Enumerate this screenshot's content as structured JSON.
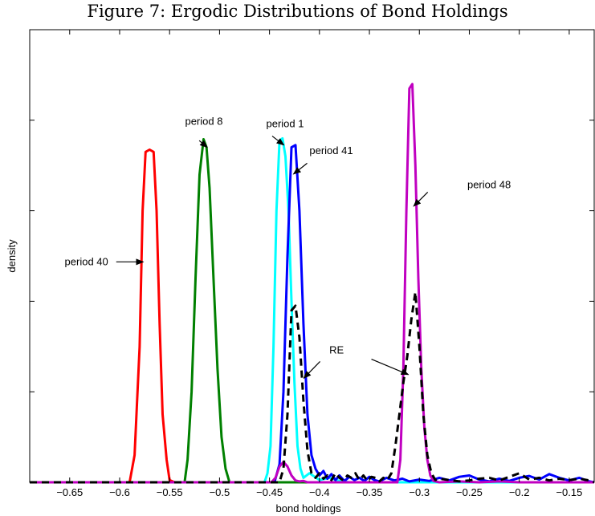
{
  "chart_data": {
    "type": "line",
    "title": "Figure 7: Ergodic Distributions of Bond Holdings",
    "xlabel": "bond holdings",
    "ylabel": "density",
    "xlim": [
      -0.69,
      -0.125
    ],
    "ylim": [
      0,
      1.0
    ],
    "x_ticks": [
      -0.65,
      -0.6,
      -0.55,
      -0.5,
      -0.45,
      -0.4,
      -0.35,
      -0.3,
      -0.25,
      -0.2,
      -0.15
    ],
    "x_tick_labels": [
      "−0.65",
      "−0.6",
      "−0.55",
      "−0.5",
      "−0.45",
      "−0.4",
      "−0.35",
      "−0.3",
      "−0.25",
      "−0.2",
      "−0.15"
    ],
    "y_ticks": [
      0.2,
      0.4,
      0.6,
      0.8
    ],
    "grid": false,
    "series": [
      {
        "name": "period 40",
        "color": "#ff0000",
        "dashed": false,
        "x": [
          -0.69,
          -0.59,
          -0.585,
          -0.58,
          -0.577,
          -0.574,
          -0.57,
          -0.566,
          -0.563,
          -0.56,
          -0.557,
          -0.553,
          -0.55,
          -0.545,
          -0.54,
          -0.125
        ],
        "y": [
          0,
          0,
          0.06,
          0.3,
          0.6,
          0.73,
          0.735,
          0.73,
          0.6,
          0.35,
          0.15,
          0.05,
          0.005,
          0,
          0,
          0
        ]
      },
      {
        "name": "period 8",
        "color": "#008000",
        "dashed": false,
        "x": [
          -0.69,
          -0.535,
          -0.532,
          -0.528,
          -0.524,
          -0.52,
          -0.516,
          -0.513,
          -0.51,
          -0.506,
          -0.502,
          -0.498,
          -0.494,
          -0.49,
          -0.125
        ],
        "y": [
          0,
          0,
          0.05,
          0.2,
          0.45,
          0.68,
          0.758,
          0.74,
          0.65,
          0.45,
          0.25,
          0.1,
          0.03,
          0,
          0
        ]
      },
      {
        "name": "period 1",
        "color": "#00ffff",
        "dashed": false,
        "x": [
          -0.69,
          -0.455,
          -0.452,
          -0.449,
          -0.446,
          -0.443,
          -0.44,
          -0.437,
          -0.434,
          -0.431,
          -0.428,
          -0.425,
          -0.422,
          -0.419,
          -0.416,
          -0.41,
          -0.4,
          -0.39,
          -0.38,
          -0.37,
          -0.125
        ],
        "y": [
          0,
          0,
          0.02,
          0.08,
          0.3,
          0.6,
          0.755,
          0.76,
          0.72,
          0.6,
          0.4,
          0.22,
          0.08,
          0.03,
          0.01,
          0.02,
          0.005,
          0.01,
          0.003,
          0,
          0
        ]
      },
      {
        "name": "period 41",
        "color": "#0000ff",
        "dashed": false,
        "x": [
          -0.69,
          -0.445,
          -0.44,
          -0.436,
          -0.432,
          -0.428,
          -0.424,
          -0.42,
          -0.416,
          -0.412,
          -0.408,
          -0.404,
          -0.4,
          -0.396,
          -0.392,
          -0.388,
          -0.384,
          -0.38,
          -0.375,
          -0.37,
          -0.365,
          -0.36,
          -0.355,
          -0.35,
          -0.345,
          -0.34,
          -0.333,
          -0.325,
          -0.317,
          -0.31,
          -0.3,
          -0.29,
          -0.28,
          -0.27,
          -0.26,
          -0.25,
          -0.24,
          -0.23,
          -0.22,
          -0.21,
          -0.2,
          -0.19,
          -0.18,
          -0.17,
          -0.16,
          -0.15,
          -0.14,
          -0.13,
          -0.125
        ],
        "y": [
          0,
          0,
          0.04,
          0.2,
          0.5,
          0.74,
          0.745,
          0.6,
          0.35,
          0.15,
          0.06,
          0.03,
          0.015,
          0.025,
          0.008,
          0.018,
          0.005,
          0.015,
          0.003,
          0.012,
          0.005,
          0.01,
          0.003,
          0.012,
          0.005,
          0.002,
          0.01,
          0.004,
          0.008,
          0.002,
          0.006,
          0.003,
          0.01,
          0.004,
          0.012,
          0.015,
          0.006,
          0.002,
          0.008,
          0.003,
          0.01,
          0.014,
          0.006,
          0.018,
          0.01,
          0.004,
          0.01,
          0.002,
          0
        ]
      },
      {
        "name": "period 48",
        "color": "#c000c0",
        "dashed": false,
        "x": [
          -0.69,
          -0.448,
          -0.444,
          -0.44,
          -0.436,
          -0.432,
          -0.428,
          -0.424,
          -0.42,
          -0.416,
          -0.412,
          -0.405,
          -0.322,
          -0.319,
          -0.316,
          -0.313,
          -0.31,
          -0.307,
          -0.304,
          -0.301,
          -0.298,
          -0.295,
          -0.292,
          -0.289,
          -0.286,
          -0.28,
          -0.26,
          -0.24,
          -0.22,
          -0.2,
          -0.125
        ],
        "y": [
          0,
          0,
          0.01,
          0.035,
          0.045,
          0.035,
          0.015,
          0.004,
          0.002,
          0.003,
          0.0,
          0,
          0,
          0.05,
          0.25,
          0.6,
          0.87,
          0.88,
          0.7,
          0.45,
          0.25,
          0.12,
          0.05,
          0.015,
          0.003,
          0,
          0.002,
          0,
          0.002,
          0,
          0
        ]
      },
      {
        "name": "RE",
        "color": "#000000",
        "dashed": true,
        "x": [
          -0.69,
          -0.44,
          -0.436,
          -0.432,
          -0.428,
          -0.424,
          -0.42,
          -0.416,
          -0.412,
          -0.408,
          -0.404,
          -0.4,
          -0.396,
          -0.392,
          -0.388,
          -0.384,
          -0.38,
          -0.376,
          -0.372,
          -0.368,
          -0.364,
          -0.36,
          -0.356,
          -0.352,
          -0.348,
          -0.344,
          -0.34,
          -0.336,
          -0.332,
          -0.328,
          -0.324,
          -0.32,
          -0.316,
          -0.312,
          -0.308,
          -0.304,
          -0.3,
          -0.296,
          -0.292,
          -0.288,
          -0.284,
          -0.28,
          -0.27,
          -0.26,
          -0.25,
          -0.24,
          -0.23,
          -0.22,
          -0.21,
          -0.2,
          -0.19,
          -0.18,
          -0.17,
          -0.16,
          -0.15,
          -0.14,
          -0.13,
          -0.125
        ],
        "y": [
          0,
          0,
          0.03,
          0.15,
          0.38,
          0.39,
          0.32,
          0.18,
          0.07,
          0.02,
          0.01,
          0.02,
          0.008,
          0.015,
          0.005,
          0.02,
          0.01,
          0.004,
          0.015,
          0.01,
          0.02,
          0.005,
          0.015,
          0.003,
          0.012,
          0.01,
          0.002,
          0.01,
          0.005,
          0.02,
          0.08,
          0.15,
          0.22,
          0.28,
          0.36,
          0.42,
          0.3,
          0.15,
          0.06,
          0.02,
          0.005,
          0.008,
          0.005,
          0.002,
          0.004,
          0.008,
          0.01,
          0.004,
          0.012,
          0.02,
          0.006,
          0.01,
          0.004,
          0.008,
          0.005,
          0.008,
          0.004,
          0
        ]
      }
    ],
    "annotations": [
      {
        "text": "period 8",
        "text_x": -0.5345,
        "text_y": 0.79,
        "arrow_from": [
          -0.5203,
          0.755
        ],
        "arrow_to": [
          -0.5123,
          0.74
        ],
        "arrow": true
      },
      {
        "text": "period 1",
        "text_x": -0.4533,
        "text_y": 0.785,
        "arrow_from": [
          -0.4473,
          0.765
        ],
        "arrow_to": [
          -0.4356,
          0.745
        ],
        "arrow": true
      },
      {
        "text": "period 41",
        "text_x": -0.41,
        "text_y": 0.725,
        "arrow_from": [
          -0.4123,
          0.705
        ],
        "arrow_to": [
          -0.426,
          0.681
        ],
        "arrow": true
      },
      {
        "text": "period 48",
        "text_x": -0.252,
        "text_y": 0.65,
        "arrow_from": [
          -0.2916,
          0.641
        ],
        "arrow_to": [
          -0.3057,
          0.61
        ],
        "arrow": true
      },
      {
        "text": "period 40",
        "text_x": -0.655,
        "text_y": 0.48,
        "arrow_from": [
          -0.6034,
          0.487
        ],
        "arrow_to": [
          -0.5763,
          0.487
        ],
        "arrow": true
      },
      {
        "text": "RE",
        "text_x": -0.3901,
        "text_y": 0.285,
        "arrow_from": [
          -0.3994,
          0.267
        ],
        "arrow_to": [
          -0.4157,
          0.23
        ],
        "arrow": true
      },
      {
        "text": "",
        "text_x": 0,
        "text_y": 0,
        "arrow_from": [
          -0.348,
          0.272
        ],
        "arrow_to": [
          -0.311,
          0.238
        ],
        "arrow": true
      }
    ]
  }
}
